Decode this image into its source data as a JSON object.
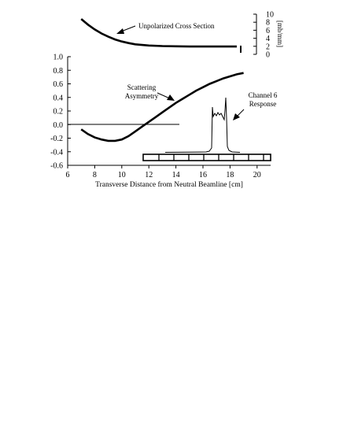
{
  "chart_data": [
    {
      "type": "line",
      "title": "",
      "xlabel": "Transverse Distance from Neutral Beamline [cm]",
      "ylabel": "",
      "xlim": [
        6,
        21
      ],
      "ylim": [
        -0.6,
        1.0
      ],
      "x_ticks": [
        "6",
        "8",
        "10",
        "12",
        "14",
        "16",
        "18",
        "20"
      ],
      "y_ticks": [
        "1.0",
        "0.8",
        "0.6",
        "0.4",
        "0.2",
        "0.0",
        "-0.2",
        "-0.4",
        "-0.6"
      ],
      "series": [
        {
          "points": [
            [
              7.0,
              -0.07
            ],
            [
              7.5,
              -0.14
            ],
            [
              8.0,
              -0.19
            ],
            [
              8.5,
              -0.22
            ],
            [
              9.0,
              -0.24
            ],
            [
              9.5,
              -0.24
            ],
            [
              10.0,
              -0.22
            ],
            [
              10.5,
              -0.17
            ],
            [
              11.0,
              -0.1
            ],
            [
              11.5,
              -0.03
            ],
            [
              12.0,
              0.04
            ],
            [
              12.5,
              0.11
            ],
            [
              13.0,
              0.18
            ],
            [
              13.5,
              0.25
            ],
            [
              14.0,
              0.32
            ],
            [
              14.5,
              0.38
            ],
            [
              15.0,
              0.44
            ],
            [
              15.5,
              0.5
            ],
            [
              16.0,
              0.55
            ],
            [
              16.5,
              0.6
            ],
            [
              17.0,
              0.64
            ],
            [
              17.5,
              0.68
            ],
            [
              18.0,
              0.71
            ],
            [
              18.5,
              0.74
            ],
            [
              19.0,
              0.76
            ]
          ]
        }
      ],
      "annotations": [
        {
          "text_lines": [
            "Scattering",
            "Asymmetry"
          ]
        },
        {
          "text_lines": [
            "Channel 6",
            "Response"
          ]
        }
      ]
    },
    {
      "type": "line",
      "title": "",
      "ylabel": "[mb/mm]",
      "ylim": [
        0,
        10
      ],
      "y_ticks": [
        "10",
        "8",
        "6",
        "4",
        "2",
        "0"
      ],
      "series": [
        {
          "points": [
            [
              7.0,
              8.8
            ],
            [
              7.5,
              7.4
            ],
            [
              8.0,
              6.2
            ],
            [
              8.5,
              5.2
            ],
            [
              9.0,
              4.4
            ],
            [
              9.5,
              3.7
            ],
            [
              10.0,
              3.2
            ],
            [
              10.5,
              2.8
            ],
            [
              11.0,
              2.5
            ],
            [
              12.0,
              2.2
            ],
            [
              13.0,
              2.05
            ],
            [
              14.0,
              2.0
            ],
            [
              15.0,
              1.95
            ],
            [
              16.0,
              1.95
            ],
            [
              17.0,
              1.95
            ],
            [
              18.0,
              1.95
            ],
            [
              18.5,
              1.95
            ]
          ]
        }
      ],
      "annotations": [
        {
          "text_lines": [
            "Unpolarized Cross Section"
          ]
        }
      ]
    }
  ]
}
